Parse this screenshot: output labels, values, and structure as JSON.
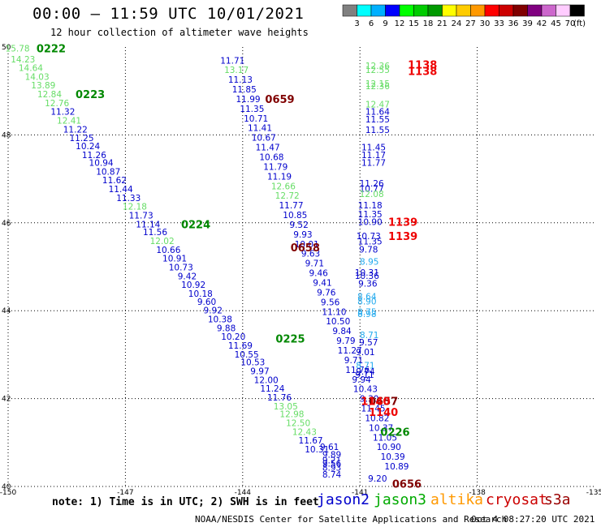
{
  "title": "00:00 – 11:59 UTC 10/01/2021",
  "subtitle": "12 hour collection of altimeter wave heights",
  "colorbar": {
    "colors": [
      "#808080",
      "#00ffff",
      "#00b0ff",
      "#0000ff",
      "#00ff00",
      "#00cc00",
      "#009900",
      "#ffff00",
      "#ffcc00",
      "#ff9900",
      "#ff0000",
      "#cc0000",
      "#800000",
      "#800080",
      "#cc66cc",
      "#ffccff",
      "#000000"
    ],
    "labels": [
      "3",
      "6",
      "9",
      "12",
      "15",
      "18",
      "21",
      "24",
      "27",
      "30",
      "33",
      "36",
      "39",
      "42",
      "45",
      "70"
    ],
    "unit": "(ft)"
  },
  "map": {
    "lon_range": [
      -150,
      -135
    ],
    "lat_range": [
      40,
      50
    ],
    "lon_ticks": [
      {
        "value": -150,
        "label": "-150"
      },
      {
        "value": -147,
        "label": "-147"
      },
      {
        "value": -144,
        "label": "-144"
      },
      {
        "value": -141,
        "label": "-141"
      },
      {
        "value": -138,
        "label": "-138"
      },
      {
        "value": -135,
        "label": "-135"
      }
    ],
    "lat_ticks": [
      {
        "value": 40,
        "label": "40"
      },
      {
        "value": 42,
        "label": "42"
      },
      {
        "value": 44,
        "label": "44"
      },
      {
        "value": 46,
        "label": "46"
      },
      {
        "value": 48,
        "label": "48"
      },
      {
        "value": 50,
        "label": "50"
      }
    ],
    "gridlines": true
  },
  "observations": [
    {
      "lon": -149.76,
      "lat": 49.97,
      "value": "15.78",
      "sat": "jason3"
    },
    {
      "lon": -149.62,
      "lat": 49.72,
      "value": "14.23",
      "sat": "jason3"
    },
    {
      "lon": -149.42,
      "lat": 49.53,
      "value": "14.64",
      "sat": "jason3"
    },
    {
      "lon": -149.26,
      "lat": 49.33,
      "value": "14.03",
      "sat": "jason3"
    },
    {
      "lon": -149.1,
      "lat": 49.13,
      "value": "13.89",
      "sat": "jason3"
    },
    {
      "lon": -148.94,
      "lat": 48.93,
      "value": "12.84",
      "sat": "jason3"
    },
    {
      "lon": -148.75,
      "lat": 48.73,
      "value": "12.76",
      "sat": "jason3"
    },
    {
      "lon": -148.6,
      "lat": 48.53,
      "value": "11.32",
      "sat": "jason2"
    },
    {
      "lon": -148.44,
      "lat": 48.33,
      "value": "12.41",
      "sat": "jason3"
    },
    {
      "lon": -148.28,
      "lat": 48.13,
      "value": "11.22",
      "sat": "jason2"
    },
    {
      "lon": -148.12,
      "lat": 47.93,
      "value": "11.25",
      "sat": "jason2"
    },
    {
      "lon": -147.96,
      "lat": 47.75,
      "value": "10.24",
      "sat": "jason2"
    },
    {
      "lon": -147.8,
      "lat": 47.55,
      "value": "11.26",
      "sat": "jason2"
    },
    {
      "lon": -147.62,
      "lat": 47.37,
      "value": "10.94",
      "sat": "jason2"
    },
    {
      "lon": -147.44,
      "lat": 47.17,
      "value": "10.87",
      "sat": "jason2"
    },
    {
      "lon": -147.28,
      "lat": 46.97,
      "value": "11.62",
      "sat": "jason2"
    },
    {
      "lon": -147.12,
      "lat": 46.77,
      "value": "11.44",
      "sat": "jason2"
    },
    {
      "lon": -146.92,
      "lat": 46.57,
      "value": "11.33",
      "sat": "jason2"
    },
    {
      "lon": -146.76,
      "lat": 46.37,
      "value": "12.18",
      "sat": "jason3"
    },
    {
      "lon": -146.6,
      "lat": 46.17,
      "value": "11.73",
      "sat": "jason2"
    },
    {
      "lon": -146.42,
      "lat": 45.97,
      "value": "11.14",
      "sat": "jason2"
    },
    {
      "lon": -146.24,
      "lat": 45.79,
      "value": "11.56",
      "sat": "jason2"
    },
    {
      "lon": -146.06,
      "lat": 45.59,
      "value": "12.02",
      "sat": "jason3"
    },
    {
      "lon": -145.9,
      "lat": 45.39,
      "value": "10.66",
      "sat": "jason2"
    },
    {
      "lon": -145.74,
      "lat": 45.19,
      "value": "10.91",
      "sat": "jason2"
    },
    {
      "lon": -145.58,
      "lat": 44.99,
      "value": "10.73",
      "sat": "jason2"
    },
    {
      "lon": -145.42,
      "lat": 44.79,
      "value": "9.42",
      "sat": "jason2"
    },
    {
      "lon": -145.26,
      "lat": 44.59,
      "value": "10.92",
      "sat": "jason2"
    },
    {
      "lon": -145.08,
      "lat": 44.39,
      "value": "10.18",
      "sat": "jason2"
    },
    {
      "lon": -144.92,
      "lat": 44.21,
      "value": "9.60",
      "sat": "jason2"
    },
    {
      "lon": -144.76,
      "lat": 44.01,
      "value": "9.92",
      "sat": "jason2"
    },
    {
      "lon": -144.58,
      "lat": 43.81,
      "value": "10.38",
      "sat": "jason2"
    },
    {
      "lon": -144.42,
      "lat": 43.61,
      "value": "9.88",
      "sat": "jason2"
    },
    {
      "lon": -144.24,
      "lat": 43.41,
      "value": "10.20",
      "sat": "jason2"
    },
    {
      "lon": -144.06,
      "lat": 43.21,
      "value": "11.69",
      "sat": "jason2"
    },
    {
      "lon": -143.9,
      "lat": 43.01,
      "value": "10.55",
      "sat": "jason2"
    },
    {
      "lon": -143.74,
      "lat": 42.83,
      "value": "10.53",
      "sat": "jason2"
    },
    {
      "lon": -143.56,
      "lat": 42.63,
      "value": "9.97",
      "sat": "jason2"
    },
    {
      "lon": -143.4,
      "lat": 42.43,
      "value": "12.00",
      "sat": "jason2"
    },
    {
      "lon": -143.24,
      "lat": 42.23,
      "value": "11.24",
      "sat": "jason2"
    },
    {
      "lon": -143.06,
      "lat": 42.03,
      "value": "11.76",
      "sat": "jason2"
    },
    {
      "lon": -142.9,
      "lat": 41.83,
      "value": "13.05",
      "sat": "jason3"
    },
    {
      "lon": -142.74,
      "lat": 41.65,
      "value": "12.98",
      "sat": "jason3"
    },
    {
      "lon": -142.58,
      "lat": 41.45,
      "value": "12.50",
      "sat": "jason3"
    },
    {
      "lon": -142.42,
      "lat": 41.25,
      "value": "12.43",
      "sat": "jason3"
    },
    {
      "lon": -142.26,
      "lat": 41.05,
      "value": "11.67",
      "sat": "jason2"
    },
    {
      "lon": -142.1,
      "lat": 40.85,
      "value": "10.31",
      "sat": "jason2"
    },
    {
      "lon": -141.72,
      "lat": 40.73,
      "value": "9.89",
      "sat": "jason2"
    },
    {
      "lon": -141.72,
      "lat": 40.53,
      "value": "9.56",
      "sat": "jason2"
    },
    {
      "lon": -144.26,
      "lat": 49.7,
      "value": "11.71",
      "sat": "jason2"
    },
    {
      "lon": -144.16,
      "lat": 49.48,
      "value": "13.17",
      "sat": "jason3"
    },
    {
      "lon": -144.06,
      "lat": 49.26,
      "value": "11.13",
      "sat": "jason2"
    },
    {
      "lon": -143.96,
      "lat": 49.04,
      "value": "11.85",
      "sat": "jason2"
    },
    {
      "lon": -143.86,
      "lat": 48.82,
      "value": "11.99",
      "sat": "jason2"
    },
    {
      "lon": -143.76,
      "lat": 48.6,
      "value": "11.35",
      "sat": "jason2"
    },
    {
      "lon": -143.66,
      "lat": 48.38,
      "value": "10.71",
      "sat": "jason2"
    },
    {
      "lon": -143.56,
      "lat": 48.16,
      "value": "11.41",
      "sat": "jason2"
    },
    {
      "lon": -143.46,
      "lat": 47.94,
      "value": "10.67",
      "sat": "jason2"
    },
    {
      "lon": -143.36,
      "lat": 47.72,
      "value": "11.47",
      "sat": "jason2"
    },
    {
      "lon": -143.26,
      "lat": 47.5,
      "value": "10.68",
      "sat": "jason2"
    },
    {
      "lon": -143.16,
      "lat": 47.28,
      "value": "11.79",
      "sat": "jason2"
    },
    {
      "lon": -143.06,
      "lat": 47.06,
      "value": "11.19",
      "sat": "jason2"
    },
    {
      "lon": -142.96,
      "lat": 46.84,
      "value": "12.66",
      "sat": "jason3"
    },
    {
      "lon": -142.86,
      "lat": 46.62,
      "value": "12.72",
      "sat": "jason3"
    },
    {
      "lon": -142.76,
      "lat": 46.4,
      "value": "11.77",
      "sat": "jason2"
    },
    {
      "lon": -142.66,
      "lat": 46.18,
      "value": "10.85",
      "sat": "jason2"
    },
    {
      "lon": -142.56,
      "lat": 45.96,
      "value": "9.52",
      "sat": "jason2"
    },
    {
      "lon": -142.46,
      "lat": 45.74,
      "value": "9.93",
      "sat": "jason2"
    },
    {
      "lon": -142.36,
      "lat": 45.52,
      "value": "10.01",
      "sat": "jason2"
    },
    {
      "lon": -142.26,
      "lat": 45.3,
      "value": "9.63",
      "sat": "jason2"
    },
    {
      "lon": -142.16,
      "lat": 45.08,
      "value": "9.71",
      "sat": "jason2"
    },
    {
      "lon": -142.06,
      "lat": 44.86,
      "value": "9.46",
      "sat": "jason2"
    },
    {
      "lon": -141.96,
      "lat": 44.64,
      "value": "9.41",
      "sat": "jason2"
    },
    {
      "lon": -141.86,
      "lat": 44.42,
      "value": "9.76",
      "sat": "jason2"
    },
    {
      "lon": -141.76,
      "lat": 44.2,
      "value": "9.56",
      "sat": "jason2"
    },
    {
      "lon": -141.66,
      "lat": 43.98,
      "value": "11.10",
      "sat": "jason2"
    },
    {
      "lon": -141.56,
      "lat": 43.76,
      "value": "10.50",
      "sat": "jason2"
    },
    {
      "lon": -141.46,
      "lat": 43.54,
      "value": "9.84",
      "sat": "jason2"
    },
    {
      "lon": -141.36,
      "lat": 43.32,
      "value": "9.79",
      "sat": "jason2"
    },
    {
      "lon": -141.26,
      "lat": 43.1,
      "value": "11.27",
      "sat": "jason2"
    },
    {
      "lon": -141.16,
      "lat": 42.88,
      "value": "9.71",
      "sat": "jason2"
    },
    {
      "lon": -141.06,
      "lat": 42.66,
      "value": "11.76",
      "sat": "jason2"
    },
    {
      "lon": -140.96,
      "lat": 42.44,
      "value": "9.94",
      "sat": "jason2"
    },
    {
      "lon": -140.86,
      "lat": 42.22,
      "value": "10.43",
      "sat": "jason2"
    },
    {
      "lon": -140.76,
      "lat": 42.0,
      "value": "9.30",
      "sat": "jason2"
    },
    {
      "lon": -140.66,
      "lat": 41.78,
      "value": "11.45",
      "sat": "jason2"
    },
    {
      "lon": -140.56,
      "lat": 41.56,
      "value": "10.82",
      "sat": "jason2"
    },
    {
      "lon": -140.46,
      "lat": 41.34,
      "value": "10.37",
      "sat": "jason2"
    },
    {
      "lon": -140.36,
      "lat": 41.12,
      "value": "11.05",
      "sat": "jason2"
    },
    {
      "lon": -140.26,
      "lat": 40.9,
      "value": "10.90",
      "sat": "jason2"
    },
    {
      "lon": -140.16,
      "lat": 40.68,
      "value": "10.39",
      "sat": "jason2"
    },
    {
      "lon": -140.06,
      "lat": 40.46,
      "value": "10.89",
      "sat": "jason2"
    },
    {
      "lon": -141.78,
      "lat": 40.9,
      "value": "9.61",
      "sat": "jason2"
    },
    {
      "lon": -141.72,
      "lat": 40.6,
      "value": "9.21",
      "sat": "jason2"
    },
    {
      "lon": -141.72,
      "lat": 40.43,
      "value": "8.93",
      "sat": "jason2"
    },
    {
      "lon": -141.72,
      "lat": 40.28,
      "value": "8.74",
      "sat": "jason2"
    },
    {
      "lon": -140.55,
      "lat": 40.18,
      "value": "9.20",
      "sat": "jason2"
    },
    {
      "lon": -140.55,
      "lat": 49.58,
      "value": "12.36",
      "sat": "jason3"
    },
    {
      "lon": -140.55,
      "lat": 49.48,
      "value": "12.55",
      "sat": "jason3"
    },
    {
      "lon": -140.55,
      "lat": 49.17,
      "value": "12.15",
      "sat": "jason3"
    },
    {
      "lon": -140.55,
      "lat": 49.11,
      "value": "12.36",
      "sat": "jason3"
    },
    {
      "lon": -140.55,
      "lat": 48.7,
      "value": "12.47",
      "sat": "jason3"
    },
    {
      "lon": -140.55,
      "lat": 48.53,
      "value": "11.64",
      "sat": "jason2"
    },
    {
      "lon": -140.55,
      "lat": 48.36,
      "value": "11.55",
      "sat": "jason2"
    },
    {
      "lon": -140.55,
      "lat": 48.12,
      "value": "11.55",
      "sat": "jason2"
    },
    {
      "lon": -140.65,
      "lat": 47.72,
      "value": "11.45",
      "sat": "jason2"
    },
    {
      "lon": -140.65,
      "lat": 47.55,
      "value": "11.17",
      "sat": "jason2"
    },
    {
      "lon": -140.65,
      "lat": 47.37,
      "value": "11.77",
      "sat": "jason2"
    },
    {
      "lon": -140.7,
      "lat": 46.9,
      "value": "11.26",
      "sat": "jason2"
    },
    {
      "lon": -140.7,
      "lat": 46.78,
      "value": "10.77",
      "sat": "jason2"
    },
    {
      "lon": -140.7,
      "lat": 46.66,
      "value": "12.08",
      "sat": "jason3"
    },
    {
      "lon": -140.74,
      "lat": 46.4,
      "value": "11.18",
      "sat": "jason2"
    },
    {
      "lon": -140.74,
      "lat": 46.2,
      "value": "11.35",
      "sat": "jason2"
    },
    {
      "lon": -140.74,
      "lat": 46.02,
      "value": "10.90",
      "sat": "jason2"
    },
    {
      "lon": -140.78,
      "lat": 45.7,
      "value": "10.73",
      "sat": "jason2"
    },
    {
      "lon": -140.74,
      "lat": 45.58,
      "value": "11.35",
      "sat": "jason2"
    },
    {
      "lon": -140.78,
      "lat": 45.4,
      "value": "9.78",
      "sat": "jason2"
    },
    {
      "lon": -140.76,
      "lat": 45.12,
      "value": "8.95",
      "sat": "altika"
    },
    {
      "lon": -140.82,
      "lat": 44.87,
      "value": "10.31",
      "sat": "jason2"
    },
    {
      "lon": -140.82,
      "lat": 44.8,
      "value": "10.36",
      "sat": "jason2"
    },
    {
      "lon": -140.8,
      "lat": 44.62,
      "value": "9.36",
      "sat": "jason2"
    },
    {
      "lon": -140.82,
      "lat": 44.33,
      "value": "8.64",
      "sat": "altika"
    },
    {
      "lon": -140.82,
      "lat": 44.22,
      "value": "8.90",
      "sat": "altika"
    },
    {
      "lon": -140.82,
      "lat": 43.98,
      "value": "8.75",
      "sat": "altika"
    },
    {
      "lon": -140.82,
      "lat": 43.93,
      "value": "8.98",
      "sat": "altika"
    },
    {
      "lon": -140.76,
      "lat": 43.45,
      "value": "8.71",
      "sat": "altika"
    },
    {
      "lon": -140.78,
      "lat": 43.28,
      "value": "9.57",
      "sat": "jason2"
    },
    {
      "lon": -140.86,
      "lat": 43.06,
      "value": "9.01",
      "sat": "jason2"
    },
    {
      "lon": -140.86,
      "lat": 42.76,
      "value": "8.71",
      "sat": "altika"
    },
    {
      "lon": -140.86,
      "lat": 42.62,
      "value": "9.74",
      "sat": "jason2"
    },
    {
      "lon": -140.88,
      "lat": 42.55,
      "value": "9.11",
      "sat": "jason2"
    }
  ],
  "pass_labels": [
    {
      "lon": -148.9,
      "lat": 49.97,
      "text": "0222",
      "sat": "jason3"
    },
    {
      "lon": -147.9,
      "lat": 48.93,
      "text": "0223",
      "sat": "jason3"
    },
    {
      "lon": -145.2,
      "lat": 45.97,
      "text": "0224",
      "sat": "jason3"
    },
    {
      "lon": -142.78,
      "lat": 43.37,
      "text": "0225",
      "sat": "jason3"
    },
    {
      "lon": -140.1,
      "lat": 41.25,
      "text": "0226",
      "sat": "jason3"
    },
    {
      "lon": -143.05,
      "lat": 48.82,
      "text": "0659",
      "sat": "cryosat"
    },
    {
      "lon": -142.4,
      "lat": 45.44,
      "text": "0658",
      "sat": "cryosat"
    },
    {
      "lon": -140.4,
      "lat": 41.95,
      "text": "0657",
      "sat": "cryosat"
    },
    {
      "lon": -139.8,
      "lat": 40.06,
      "text": "0656",
      "sat": "cryosat"
    },
    {
      "lon": -139.4,
      "lat": 49.6,
      "text": "1138",
      "sat": "s3a"
    },
    {
      "lon": -139.4,
      "lat": 49.46,
      "text": "1138",
      "sat": "s3a"
    },
    {
      "lon": -139.9,
      "lat": 46.02,
      "text": "1139",
      "sat": "s3a"
    },
    {
      "lon": -139.9,
      "lat": 45.7,
      "text": "1139",
      "sat": "s3a"
    },
    {
      "lon": -140.6,
      "lat": 41.95,
      "text": "1140",
      "sat": "s3a"
    },
    {
      "lon": -140.4,
      "lat": 41.7,
      "text": "1140",
      "sat": "s3a"
    }
  ],
  "sat_colors": {
    "jason2": "#0000cc",
    "jason3": "#66dd66",
    "altika": "#22aaee",
    "cryosat": "#800000",
    "s3a": "#ee0000",
    "pass_jason3": "#008800"
  },
  "note": "note: 1) Time is in UTC; 2) SWH is in feet",
  "legend": [
    {
      "label": "jason2",
      "color": "#0000cc"
    },
    {
      "label": "jason3",
      "color": "#00aa00"
    },
    {
      "label": "altika",
      "color": "#ff9900"
    },
    {
      "label": "cryosat",
      "color": "#cc0000"
    },
    {
      "label": "s3a",
      "color": "#990000"
    }
  ],
  "footer_left": "NOAA/NESDIS Center for Satellite Applications and Research",
  "footer_right": "Oct  4 08:27:20 UTC 2021"
}
